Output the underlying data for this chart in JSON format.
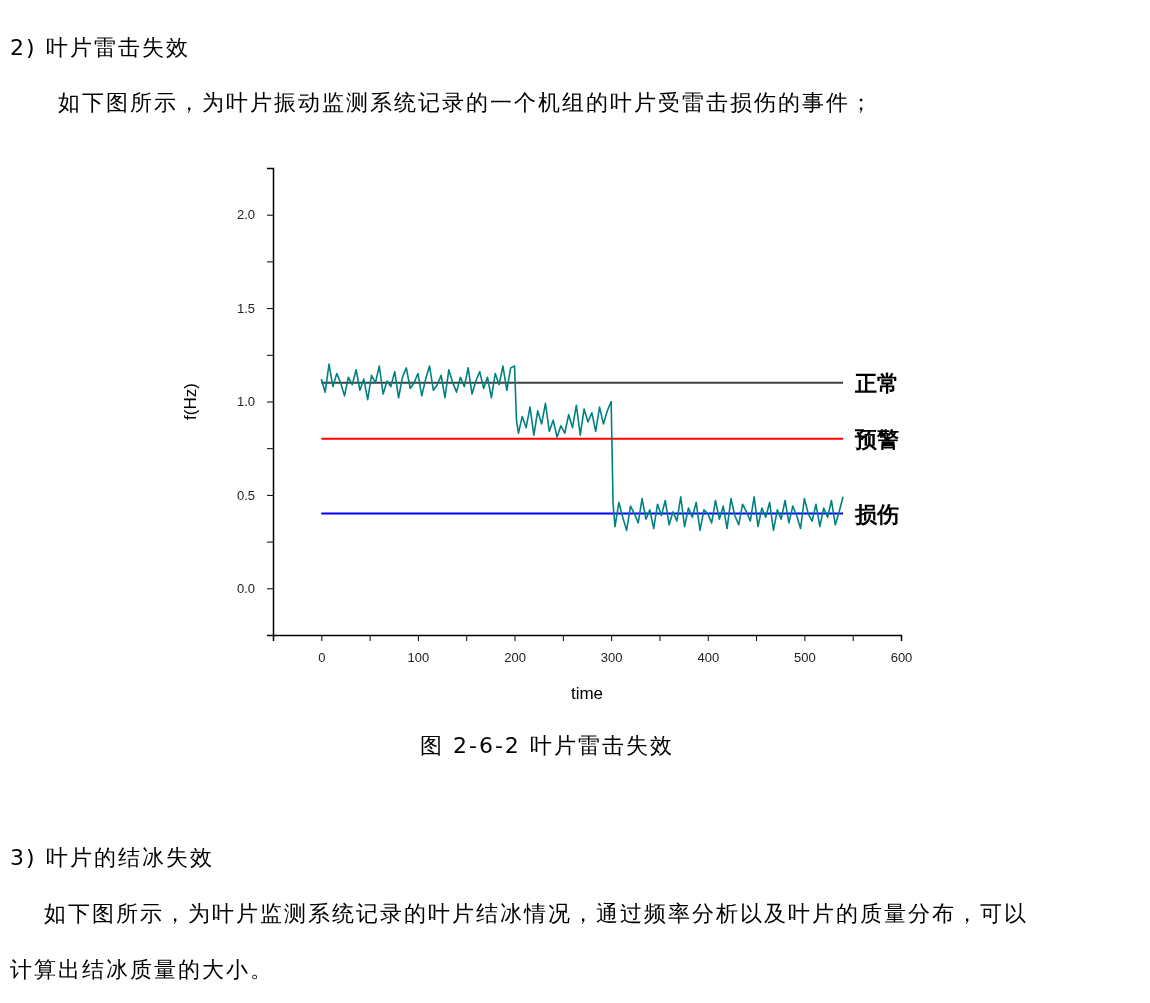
{
  "chart_data": {
    "type": "line",
    "xlabel": "time",
    "ylabel": "f(Hz)",
    "xlim": [
      -50,
      600
    ],
    "xticks": [
      {
        "value": -50,
        "label": null
      },
      0,
      {
        "value": 50,
        "label": null
      },
      100,
      {
        "value": 150,
        "label": null
      },
      200,
      {
        "value": 250,
        "label": null
      },
      300,
      {
        "value": 350,
        "label": null
      },
      400,
      {
        "value": 450,
        "label": null
      },
      500,
      {
        "value": 550,
        "label": null
      },
      600
    ],
    "ylim": [
      -0.25,
      2.25
    ],
    "yticks": [
      {
        "value": -0.25,
        "label": null
      },
      {
        "value": 0,
        "label": "0.0"
      },
      {
        "value": 0.25,
        "label": null
      },
      0.5,
      {
        "value": 0.75,
        "label": null
      },
      {
        "value": 1,
        "label": "1.0"
      },
      {
        "value": 1.25,
        "label": null
      },
      1.5,
      {
        "value": 1.75,
        "label": null
      },
      {
        "value": 2,
        "label": "2.0"
      },
      {
        "value": 2.25,
        "label": null
      }
    ],
    "grid": false,
    "series": [
      {
        "color": "#008080",
        "x": [
          0,
          4,
          8,
          12,
          16,
          20,
          24,
          28,
          32,
          36,
          40,
          44,
          48,
          52,
          56,
          60,
          64,
          68,
          72,
          76,
          80,
          84,
          88,
          92,
          96,
          100,
          104,
          108,
          112,
          116,
          120,
          124,
          128,
          132,
          136,
          140,
          144,
          148,
          152,
          156,
          160,
          164,
          168,
          172,
          176,
          180,
          184,
          188,
          192,
          196,
          200,
          202,
          204,
          208,
          212,
          216,
          220,
          224,
          228,
          232,
          236,
          240,
          244,
          248,
          252,
          256,
          260,
          264,
          268,
          272,
          276,
          280,
          284,
          288,
          292,
          296,
          300,
          302,
          304,
          308,
          312,
          316,
          320,
          324,
          328,
          332,
          336,
          340,
          344,
          348,
          352,
          356,
          360,
          364,
          368,
          372,
          376,
          380,
          384,
          388,
          392,
          396,
          400,
          404,
          408,
          412,
          416,
          420,
          424,
          428,
          432,
          436,
          440,
          444,
          448,
          452,
          456,
          460,
          464,
          468,
          472,
          476,
          480,
          484,
          488,
          492,
          496,
          500,
          504,
          508,
          512,
          516,
          520,
          524,
          528,
          532,
          536,
          540
        ],
        "values": [
          1.12,
          1.05,
          1.2,
          1.08,
          1.15,
          1.1,
          1.03,
          1.13,
          1.09,
          1.17,
          1.06,
          1.12,
          1.01,
          1.14,
          1.1,
          1.19,
          1.04,
          1.11,
          1.08,
          1.16,
          1.02,
          1.13,
          1.18,
          1.07,
          1.1,
          1.15,
          1.03,
          1.12,
          1.19,
          1.06,
          1.09,
          1.14,
          1.02,
          1.17,
          1.1,
          1.05,
          1.13,
          1.08,
          1.18,
          1.04,
          1.11,
          1.16,
          1.07,
          1.13,
          1.02,
          1.15,
          1.09,
          1.19,
          1.06,
          1.18,
          1.19,
          0.9,
          0.83,
          0.92,
          0.86,
          0.97,
          0.82,
          0.95,
          0.88,
          0.99,
          0.84,
          0.9,
          0.81,
          0.87,
          0.83,
          0.93,
          0.86,
          0.98,
          0.82,
          0.96,
          0.89,
          0.94,
          0.84,
          0.97,
          0.88,
          0.95,
          1.0,
          0.45,
          0.33,
          0.46,
          0.38,
          0.31,
          0.44,
          0.4,
          0.35,
          0.48,
          0.37,
          0.42,
          0.32,
          0.45,
          0.39,
          0.47,
          0.34,
          0.41,
          0.36,
          0.49,
          0.33,
          0.43,
          0.38,
          0.46,
          0.31,
          0.42,
          0.4,
          0.35,
          0.47,
          0.37,
          0.44,
          0.32,
          0.48,
          0.39,
          0.34,
          0.45,
          0.41,
          0.36,
          0.49,
          0.33,
          0.43,
          0.38,
          0.46,
          0.31,
          0.42,
          0.37,
          0.47,
          0.35,
          0.44,
          0.39,
          0.32,
          0.48,
          0.4,
          0.36,
          0.45,
          0.33,
          0.43,
          0.38,
          0.47,
          0.34,
          0.41,
          0.49
        ]
      },
      {
        "name": "正常",
        "color": "#404040",
        "x": [
          0,
          540
        ],
        "values": [
          1.1,
          1.1
        ]
      },
      {
        "name": "预警",
        "color": "#ff0000",
        "x": [
          0,
          540
        ],
        "values": [
          0.8,
          0.8
        ]
      },
      {
        "name": "损伤",
        "color": "#0000ff",
        "x": [
          0,
          540
        ],
        "values": [
          0.4,
          0.4
        ]
      }
    ],
    "annotations": [
      "2) 叶片雷击失效",
      "如下图所示，为叶片振动监测系统记录的一个机组的叶片受雷击损伤的事件；",
      "图 2-6-2  叶片雷击失效",
      "3) 叶片的结冰失效",
      "如下图所示，为叶片监测系统记录的叶片结冰情况，通过频率分析以及叶片的质量分布，可以计算出结冰质量的大小。"
    ]
  }
}
